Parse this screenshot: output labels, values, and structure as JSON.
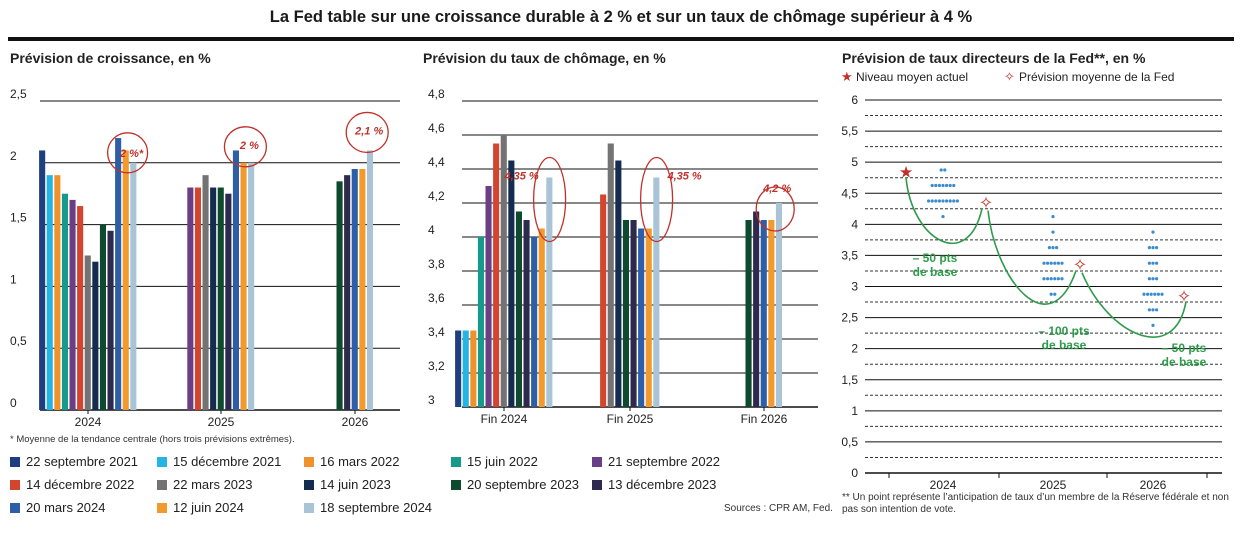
{
  "title": "La Fed table sur une croissance durable à 2 % et sur un taux de chômage supérieur à 4 %",
  "footnote": "* Moyenne de la tendance centrale (hors trois prévisions extrêmes).",
  "sources": "Sources : CPR AM, Fed.",
  "note_dots": "** Un point représente l’anticipation de taux d’un membre de la Réserve fédérale et non pas son intention de vote.",
  "legend": [
    {
      "label": "22 septembre 2021",
      "color": "#1f3f80"
    },
    {
      "label": "15 décembre 2021",
      "color": "#23b5e3"
    },
    {
      "label": "16 mars 2022",
      "color": "#f0922b"
    },
    {
      "label": "15 juin 2022",
      "color": "#159a8c"
    },
    {
      "label": "21 septembre 2022",
      "color": "#6b3f86"
    },
    {
      "label": "14 décembre 2022",
      "color": "#d4452e"
    },
    {
      "label": "22 mars 2023",
      "color": "#737373"
    },
    {
      "label": "14 juin 2023",
      "color": "#152c50"
    },
    {
      "label": "20 septembre 2023",
      "color": "#0d4a2e"
    },
    {
      "label": "13 décembre 2023",
      "color": "#2e2a4e"
    },
    {
      "label": "20 mars 2024",
      "color": "#2d5fa8"
    },
    {
      "label": "12 juin 2024",
      "color": "#f29a2e"
    },
    {
      "label": "18 septembre 2024",
      "color": "#a8c4d6"
    }
  ],
  "chart_data": [
    {
      "type": "bar",
      "title": "Prévision de croissance, en %",
      "categories": [
        "2024",
        "2025",
        "2026"
      ],
      "ylim": [
        0,
        2.5
      ],
      "yticks": [
        "0",
        "0,5",
        "1",
        "1,5",
        "2",
        "2,5"
      ],
      "series": [
        {
          "name": "22 septembre 2021",
          "values": [
            2.1,
            null,
            null
          ]
        },
        {
          "name": "15 décembre 2021",
          "values": [
            1.9,
            null,
            null
          ]
        },
        {
          "name": "16 mars 2022",
          "values": [
            1.9,
            null,
            null
          ]
        },
        {
          "name": "15 juin 2022",
          "values": [
            1.75,
            null,
            null
          ]
        },
        {
          "name": "21 septembre 2022",
          "values": [
            1.7,
            1.8,
            null
          ]
        },
        {
          "name": "14 décembre 2022",
          "values": [
            1.65,
            1.8,
            null
          ]
        },
        {
          "name": "22 mars 2023",
          "values": [
            1.25,
            1.9,
            null
          ]
        },
        {
          "name": "14 juin 2023",
          "values": [
            1.2,
            1.8,
            null
          ]
        },
        {
          "name": "20 septembre 2023",
          "values": [
            1.5,
            1.8,
            1.85
          ]
        },
        {
          "name": "13 décembre 2023",
          "values": [
            1.45,
            1.75,
            1.9
          ]
        },
        {
          "name": "20 mars 2024",
          "values": [
            2.2,
            2.1,
            1.95
          ]
        },
        {
          "name": "12 juin 2024",
          "values": [
            2.1,
            2.0,
            1.95
          ]
        },
        {
          "name": "18 septembre 2024",
          "values": [
            2.0,
            2.0,
            2.1
          ]
        }
      ],
      "annotations": [
        "2 %*",
        "2 %",
        "2,1 %"
      ]
    },
    {
      "type": "bar",
      "title": "Prévision du taux de chômage, en %",
      "categories": [
        "Fin 2024",
        "Fin 2025",
        "Fin 2026"
      ],
      "ylim": [
        3,
        4.8
      ],
      "yticks": [
        "3",
        "3,2",
        "3,4",
        "3,6",
        "3,8",
        "4",
        "4,2",
        "4,4",
        "4,6",
        "4,8"
      ],
      "series": [
        {
          "name": "22 septembre 2021",
          "values": [
            3.45,
            null,
            null
          ]
        },
        {
          "name": "15 décembre 2021",
          "values": [
            3.45,
            null,
            null
          ]
        },
        {
          "name": "16 mars 2022",
          "values": [
            3.45,
            null,
            null
          ]
        },
        {
          "name": "15 juin 2022",
          "values": [
            4.0,
            null,
            null
          ]
        },
        {
          "name": "21 septembre 2022",
          "values": [
            4.3,
            null,
            null
          ]
        },
        {
          "name": "14 décembre 2022",
          "values": [
            4.55,
            4.25,
            null
          ]
        },
        {
          "name": "22 mars 2023",
          "values": [
            4.6,
            4.55,
            null
          ]
        },
        {
          "name": "14 juin 2023",
          "values": [
            4.45,
            4.45,
            null
          ]
        },
        {
          "name": "20 septembre 2023",
          "values": [
            4.15,
            4.1,
            4.1
          ]
        },
        {
          "name": "13 décembre 2023",
          "values": [
            4.1,
            4.1,
            4.15
          ]
        },
        {
          "name": "20 mars 2024",
          "values": [
            4.0,
            4.05,
            4.1
          ]
        },
        {
          "name": "12 juin 2024",
          "values": [
            4.05,
            4.05,
            4.1
          ]
        },
        {
          "name": "18 septembre 2024",
          "values": [
            4.35,
            4.35,
            4.2
          ]
        }
      ],
      "annotations": [
        "4,35 %",
        "4,35 %",
        "4,2 %"
      ]
    },
    {
      "type": "scatter",
      "title": "Prévision de taux directeurs de la Fed**, en %",
      "categories": [
        "2024",
        "2025",
        "2026"
      ],
      "ylim": [
        0,
        6
      ],
      "yticks": [
        "0",
        "0,5",
        "1",
        "1,5",
        "2",
        "2,5",
        "3",
        "3,5",
        "4",
        "4,5",
        "5",
        "5,5",
        "6"
      ],
      "legend_current": "Niveau moyen actuel",
      "legend_forecast": "Prévision moyenne de la Fed",
      "current_level": 4.85,
      "forecast_mean": [
        4.35,
        3.35,
        2.85
      ],
      "dots": [
        {
          "category": "2024",
          "rows": [
            {
              "y": 4.875,
              "count": 2
            },
            {
              "y": 4.625,
              "count": 7
            },
            {
              "y": 4.375,
              "count": 9
            },
            {
              "y": 4.125,
              "count": 1
            }
          ]
        },
        {
          "category": "2025",
          "rows": [
            {
              "y": 4.125,
              "count": 1
            },
            {
              "y": 3.875,
              "count": 1
            },
            {
              "y": 3.625,
              "count": 3
            },
            {
              "y": 3.375,
              "count": 6
            },
            {
              "y": 3.125,
              "count": 6
            },
            {
              "y": 2.875,
              "count": 2
            }
          ]
        },
        {
          "category": "2026",
          "rows": [
            {
              "y": 3.875,
              "count": 1
            },
            {
              "y": 3.625,
              "count": 3
            },
            {
              "y": 3.375,
              "count": 3
            },
            {
              "y": 3.125,
              "count": 3
            },
            {
              "y": 2.875,
              "count": 6
            },
            {
              "y": 2.625,
              "count": 3
            },
            {
              "y": 2.375,
              "count": 1
            }
          ]
        }
      ],
      "changes": [
        {
          "line1": "– 50 pts",
          "line2": "de base"
        },
        {
          "line1": "– 100 pts",
          "line2": "de base"
        },
        {
          "line1": "– 50 pts",
          "line2": "de base"
        }
      ]
    }
  ]
}
